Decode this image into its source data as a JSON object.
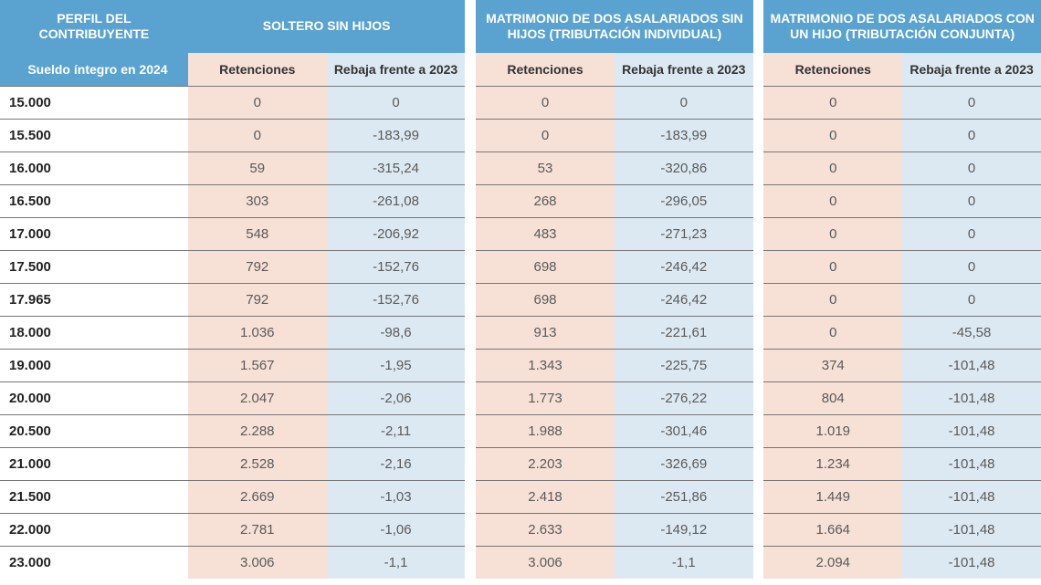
{
  "colors": {
    "header_blue": "#5aa3d1",
    "header_text": "#ffffff",
    "col_ret_bg": "#f7e0d6",
    "col_reb_bg": "#dde9f2",
    "salary_text": "#222222",
    "data_text": "#5a5a5a",
    "row_border": "#777777",
    "group_divider": "#ffffff"
  },
  "layout": {
    "col_salary_pct": 17.5,
    "col_data_pct": 12.9,
    "col_gap_pct": 1.0,
    "header_row1_h": 58,
    "header_row2_h": 36,
    "body_row_h": 36,
    "font_header": 14,
    "font_sub": 14,
    "font_body": 15
  },
  "header": {
    "profile": "PERFIL DEL CONTRIBUYENTE",
    "salary_sub": "Sueldo íntegro en 2024",
    "groups": [
      "SOLTERO SIN HIJOS",
      "MATRIMONIO DE DOS ASALARIADOS SIN HIJOS (TRIBUTACIÓN INDIVIDUAL)",
      "MATRIMONIO DE DOS ASALARIADOS CON UN HIJO (TRIBUTACIÓN CONJUNTA)"
    ],
    "sub_ret": "Retenciones",
    "sub_reb": "Rebaja frente a 2023"
  },
  "rows": [
    {
      "salary": "15.000",
      "g1r": "0",
      "g1b": "0",
      "g2r": "0",
      "g2b": "0",
      "g3r": "0",
      "g3b": "0"
    },
    {
      "salary": "15.500",
      "g1r": "0",
      "g1b": "-183,99",
      "g2r": "0",
      "g2b": "-183,99",
      "g3r": "0",
      "g3b": "0"
    },
    {
      "salary": "16.000",
      "g1r": "59",
      "g1b": "-315,24",
      "g2r": "53",
      "g2b": "-320,86",
      "g3r": "0",
      "g3b": "0"
    },
    {
      "salary": "16.500",
      "g1r": "303",
      "g1b": "-261,08",
      "g2r": "268",
      "g2b": "-296,05",
      "g3r": "0",
      "g3b": "0"
    },
    {
      "salary": "17.000",
      "g1r": "548",
      "g1b": "-206,92",
      "g2r": "483",
      "g2b": "-271,23",
      "g3r": "0",
      "g3b": "0"
    },
    {
      "salary": "17.500",
      "g1r": "792",
      "g1b": "-152,76",
      "g2r": "698",
      "g2b": "-246,42",
      "g3r": "0",
      "g3b": "0"
    },
    {
      "salary": "17.965",
      "g1r": "792",
      "g1b": "-152,76",
      "g2r": "698",
      "g2b": "-246,42",
      "g3r": "0",
      "g3b": "0"
    },
    {
      "salary": "18.000",
      "g1r": "1.036",
      "g1b": "-98,6",
      "g2r": "913",
      "g2b": "-221,61",
      "g3r": "0",
      "g3b": "-45,58"
    },
    {
      "salary": "19.000",
      "g1r": "1.567",
      "g1b": "-1,95",
      "g2r": "1.343",
      "g2b": "-225,75",
      "g3r": "374",
      "g3b": "-101,48"
    },
    {
      "salary": "20.000",
      "g1r": "2.047",
      "g1b": "-2,06",
      "g2r": "1.773",
      "g2b": "-276,22",
      "g3r": "804",
      "g3b": "-101,48"
    },
    {
      "salary": "20.500",
      "g1r": "2.288",
      "g1b": "-2,11",
      "g2r": "1.988",
      "g2b": "-301,46",
      "g3r": "1.019",
      "g3b": "-101,48"
    },
    {
      "salary": "21.000",
      "g1r": "2.528",
      "g1b": "-2,16",
      "g2r": "2.203",
      "g2b": "-326,69",
      "g3r": "1.234",
      "g3b": "-101,48"
    },
    {
      "salary": "21.500",
      "g1r": "2.669",
      "g1b": "-1,03",
      "g2r": "2.418",
      "g2b": "-251,86",
      "g3r": "1.449",
      "g3b": "-101,48"
    },
    {
      "salary": "22.000",
      "g1r": "2.781",
      "g1b": "-1,06",
      "g2r": "2.633",
      "g2b": "-149,12",
      "g3r": "1.664",
      "g3b": "-101,48"
    },
    {
      "salary": "23.000",
      "g1r": "3.006",
      "g1b": "-1,1",
      "g2r": "3.006",
      "g2b": "-1,1",
      "g3r": "2.094",
      "g3b": "-101,48"
    }
  ]
}
